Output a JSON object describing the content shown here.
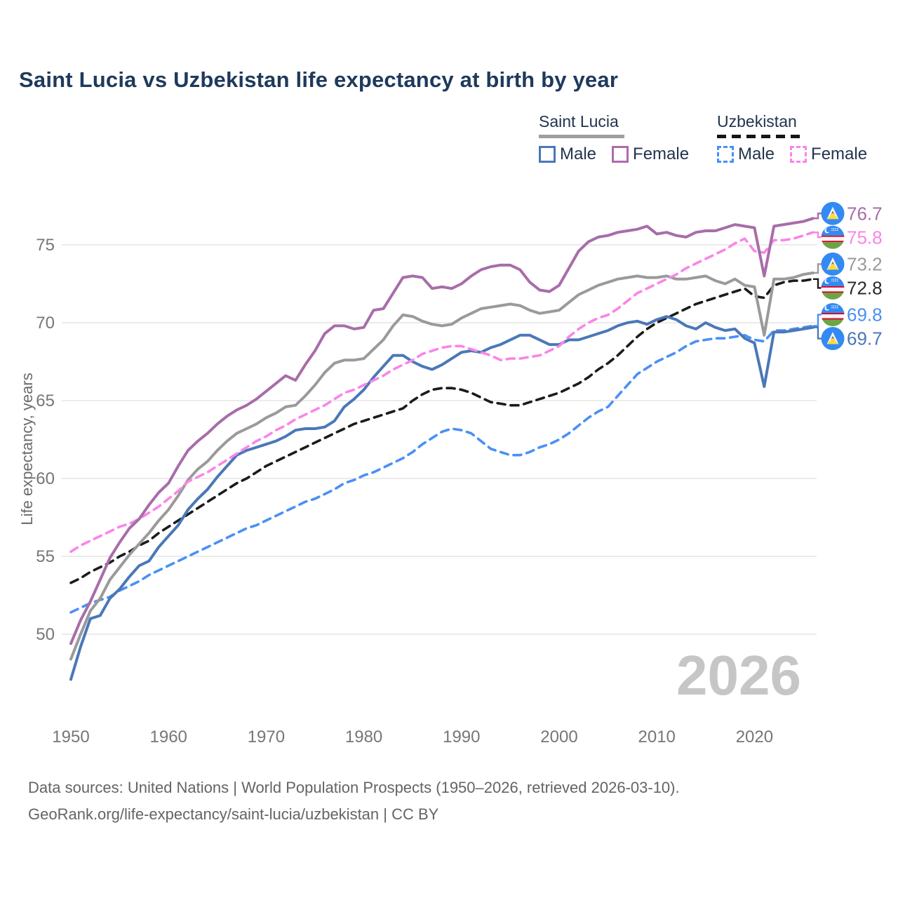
{
  "title": "Saint Lucia vs Uzbekistan life expectancy at birth by year",
  "legend": {
    "saint_lucia": {
      "label": "Saint Lucia",
      "male": "Male",
      "female": "Female"
    },
    "uzbekistan": {
      "label": "Uzbekistan",
      "male": "Male",
      "female": "Female"
    }
  },
  "watermark": "2026",
  "footer": {
    "line1": "Data sources: United Nations | World Population Prospects (1950–2026, retrieved 2026-03-10).",
    "line2": "GeoRank.org/life-expectancy/saint-lucia/uzbekistan | CC BY"
  },
  "colors": {
    "sl_male": "#4a78b8",
    "sl_female": "#a86da9",
    "sl_both": "#9a9a9a",
    "uz_male": "#4a90f5",
    "uz_female": "#fa85e8",
    "uz_both": "#1b1b1b",
    "grid": "#ebebeb",
    "tick_text": "#767676",
    "watermark": "#c6c6c6",
    "flag_blue": "#338af3",
    "flag_yellow": "#ffda44",
    "flag_red": "#d80027",
    "flag_green": "#6da544"
  },
  "chart_data": {
    "type": "line",
    "title": "Saint Lucia vs Uzbekistan life expectancy at birth by year",
    "xlabel": "",
    "ylabel": "Life expectancy, years",
    "x_start": 1950,
    "x_end": 2026,
    "x_ticks": [
      1950,
      1960,
      1970,
      1980,
      1990,
      2000,
      2010,
      2020
    ],
    "y_ticks": [
      50,
      55,
      60,
      65,
      70,
      75
    ],
    "ylim": [
      46.5,
      77.5
    ],
    "grid": true,
    "legend_position": "top-right",
    "series": [
      {
        "id": "uz-male",
        "name": "Uzbekistan Male",
        "country": "Uzbekistan",
        "sex": "Male",
        "style": "dashed",
        "color_key": "uz_male",
        "flag": "uz",
        "end_label": "69.8",
        "values": [
          51.4,
          51.7,
          52.0,
          52.2,
          52.4,
          52.8,
          53.1,
          53.4,
          53.8,
          54.1,
          54.4,
          54.7,
          55.0,
          55.3,
          55.6,
          55.9,
          56.2,
          56.5,
          56.8,
          57.0,
          57.3,
          57.6,
          57.9,
          58.2,
          58.5,
          58.7,
          59.0,
          59.3,
          59.7,
          59.9,
          60.2,
          60.4,
          60.7,
          61.0,
          61.3,
          61.7,
          62.2,
          62.6,
          63.0,
          63.2,
          63.1,
          62.9,
          62.4,
          61.9,
          61.7,
          61.5,
          61.5,
          61.7,
          62.0,
          62.2,
          62.5,
          62.9,
          63.4,
          63.9,
          64.3,
          64.6,
          65.3,
          66.0,
          66.7,
          67.1,
          67.5,
          67.8,
          68.1,
          68.5,
          68.8,
          68.9,
          69.0,
          69.0,
          69.1,
          69.2,
          68.9,
          68.8,
          69.5,
          69.5,
          69.6,
          69.7,
          69.8
        ]
      },
      {
        "id": "uz-both",
        "name": "Uzbekistan",
        "country": "Uzbekistan",
        "sex": "Both",
        "style": "dashed",
        "color_key": "uz_both",
        "flag": "uz",
        "end_label": "72.8",
        "values": [
          53.3,
          53.6,
          54.0,
          54.3,
          54.6,
          55.0,
          55.3,
          55.7,
          56.0,
          56.5,
          56.9,
          57.3,
          57.7,
          58.1,
          58.5,
          58.9,
          59.3,
          59.7,
          60.0,
          60.4,
          60.8,
          61.1,
          61.4,
          61.7,
          62.0,
          62.3,
          62.6,
          62.9,
          63.2,
          63.5,
          63.7,
          63.9,
          64.1,
          64.3,
          64.5,
          65.0,
          65.4,
          65.7,
          65.8,
          65.8,
          65.7,
          65.5,
          65.2,
          64.9,
          64.8,
          64.7,
          64.7,
          64.9,
          65.1,
          65.3,
          65.5,
          65.8,
          66.1,
          66.5,
          67.0,
          67.4,
          67.9,
          68.5,
          69.1,
          69.6,
          70.0,
          70.3,
          70.6,
          70.9,
          71.2,
          71.4,
          71.6,
          71.8,
          72.0,
          72.2,
          71.7,
          71.6,
          72.4,
          72.6,
          72.7,
          72.7,
          72.8
        ]
      },
      {
        "id": "sl-both",
        "name": "Saint Lucia",
        "country": "Saint Lucia",
        "sex": "Both",
        "style": "solid",
        "color_key": "sl_both",
        "flag": "lc",
        "end_label": "73.2",
        "values": [
          48.4,
          50.0,
          51.5,
          52.3,
          53.5,
          54.3,
          55.1,
          55.8,
          56.5,
          57.3,
          58.0,
          58.9,
          59.9,
          60.6,
          61.1,
          61.8,
          62.4,
          62.9,
          63.2,
          63.5,
          63.9,
          64.2,
          64.6,
          64.7,
          65.3,
          66.0,
          66.8,
          67.4,
          67.6,
          67.6,
          67.7,
          68.3,
          68.9,
          69.8,
          70.5,
          70.4,
          70.1,
          69.9,
          69.8,
          69.9,
          70.3,
          70.6,
          70.9,
          71.0,
          71.1,
          71.2,
          71.1,
          70.8,
          70.6,
          70.7,
          70.8,
          71.3,
          71.8,
          72.1,
          72.4,
          72.6,
          72.8,
          72.9,
          73.0,
          72.9,
          72.9,
          73.0,
          72.8,
          72.8,
          72.9,
          73.0,
          72.7,
          72.5,
          72.8,
          72.4,
          72.3,
          69.2,
          72.8,
          72.8,
          72.9,
          73.1,
          73.2
        ]
      },
      {
        "id": "sl-male",
        "name": "Saint Lucia Male",
        "country": "Saint Lucia",
        "sex": "Male",
        "style": "solid",
        "color_key": "sl_male",
        "flag": "lc",
        "end_label": "69.7",
        "values": [
          47.1,
          49.2,
          51.0,
          51.2,
          52.3,
          52.9,
          53.7,
          54.4,
          54.7,
          55.6,
          56.3,
          57.0,
          58.0,
          58.7,
          59.3,
          60.1,
          60.8,
          61.5,
          61.8,
          62.0,
          62.2,
          62.4,
          62.7,
          63.1,
          63.2,
          63.2,
          63.3,
          63.7,
          64.6,
          65.1,
          65.7,
          66.5,
          67.2,
          67.9,
          67.9,
          67.5,
          67.2,
          67.0,
          67.3,
          67.7,
          68.1,
          68.2,
          68.1,
          68.4,
          68.6,
          68.9,
          69.2,
          69.2,
          68.9,
          68.6,
          68.6,
          68.9,
          68.9,
          69.1,
          69.3,
          69.5,
          69.8,
          70.0,
          70.1,
          69.9,
          70.2,
          70.4,
          70.2,
          69.8,
          69.6,
          70.0,
          69.7,
          69.5,
          69.6,
          69.0,
          68.7,
          65.9,
          69.4,
          69.4,
          69.5,
          69.6,
          69.7
        ]
      },
      {
        "id": "uz-female",
        "name": "Uzbekistan Female",
        "country": "Uzbekistan",
        "sex": "Female",
        "style": "dashed",
        "color_key": "uz_female",
        "flag": "uz",
        "end_label": "75.8",
        "values": [
          55.3,
          55.7,
          56.0,
          56.3,
          56.6,
          56.9,
          57.1,
          57.4,
          57.8,
          58.2,
          58.7,
          59.2,
          59.8,
          60.1,
          60.4,
          60.8,
          61.2,
          61.6,
          62.0,
          62.4,
          62.7,
          63.1,
          63.4,
          63.8,
          64.1,
          64.4,
          64.7,
          65.1,
          65.5,
          65.7,
          66.0,
          66.3,
          66.6,
          67.0,
          67.3,
          67.6,
          68.0,
          68.2,
          68.4,
          68.5,
          68.5,
          68.3,
          68.1,
          67.9,
          67.6,
          67.7,
          67.7,
          67.8,
          67.9,
          68.2,
          68.5,
          69.1,
          69.6,
          70.0,
          70.3,
          70.5,
          70.9,
          71.4,
          71.9,
          72.2,
          72.5,
          72.8,
          73.1,
          73.5,
          73.8,
          74.1,
          74.4,
          74.7,
          75.1,
          75.4,
          74.6,
          74.5,
          75.3,
          75.3,
          75.4,
          75.6,
          75.8
        ]
      },
      {
        "id": "sl-female",
        "name": "Saint Lucia Female",
        "country": "Saint Lucia",
        "sex": "Female",
        "style": "solid",
        "color_key": "sl_female",
        "flag": "lc",
        "end_label": "76.7",
        "values": [
          49.4,
          50.9,
          52.1,
          53.5,
          54.9,
          55.9,
          56.8,
          57.4,
          58.3,
          59.1,
          59.7,
          60.8,
          61.8,
          62.4,
          62.9,
          63.5,
          64.0,
          64.4,
          64.7,
          65.1,
          65.6,
          66.1,
          66.6,
          66.3,
          67.3,
          68.2,
          69.3,
          69.8,
          69.8,
          69.6,
          69.7,
          70.8,
          70.9,
          71.9,
          72.9,
          73.0,
          72.9,
          72.2,
          72.3,
          72.2,
          72.5,
          73.0,
          73.4,
          73.6,
          73.7,
          73.7,
          73.4,
          72.6,
          72.1,
          72.0,
          72.4,
          73.5,
          74.6,
          75.2,
          75.5,
          75.6,
          75.8,
          75.9,
          76.0,
          76.2,
          75.7,
          75.8,
          75.6,
          75.5,
          75.8,
          75.9,
          75.9,
          76.1,
          76.3,
          76.2,
          76.1,
          73.0,
          76.2,
          76.3,
          76.4,
          76.5,
          76.7
        ]
      }
    ]
  }
}
